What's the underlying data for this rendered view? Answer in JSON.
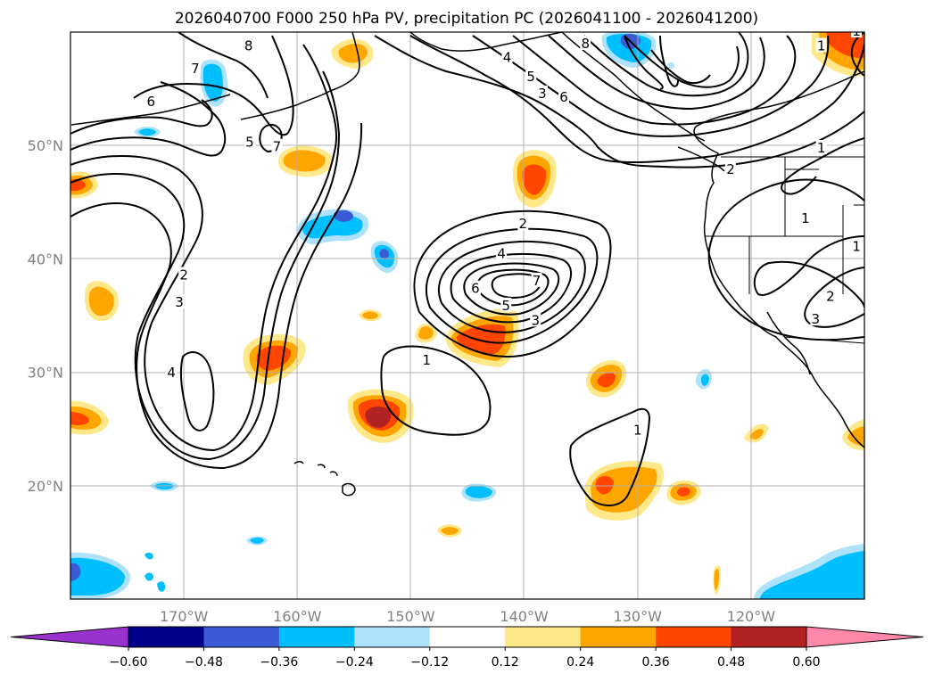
{
  "title": "2026040700 F000 250 hPa PV, precipitation PC (2026041100 - 2026041200)",
  "chart_data": {
    "type": "contour-map",
    "title": "2026040700 F000 250 hPa PV, precipitation PC (2026041100 - 2026041200)",
    "init_time": "2026040700",
    "forecast_hour": "F000",
    "level": "250 hPa",
    "contour_field": "PV",
    "shaded_field": "precipitation PC",
    "valid_window": "2026041100 - 2026041200",
    "lon_range": [
      -180,
      -110
    ],
    "lat_range": [
      10,
      60
    ],
    "x_ticks": [
      {
        "lon": -170,
        "label": "170°W"
      },
      {
        "lon": -160,
        "label": "160°W"
      },
      {
        "lon": -150,
        "label": "150°W"
      },
      {
        "lon": -140,
        "label": "140°W"
      },
      {
        "lon": -130,
        "label": "130°W"
      },
      {
        "lon": -120,
        "label": "120°W"
      }
    ],
    "y_ticks": [
      {
        "lat": 20,
        "label": "20°N"
      },
      {
        "lat": 30,
        "label": "30°N"
      },
      {
        "lat": 40,
        "label": "40°N"
      },
      {
        "lat": 50,
        "label": "50°N"
      }
    ],
    "grid": true,
    "colorbar": {
      "levels": [
        -0.6,
        -0.48,
        -0.36,
        -0.24,
        -0.12,
        0.12,
        0.24,
        0.36,
        0.48,
        0.6
      ],
      "tick_labels": [
        "−0.60",
        "−0.48",
        "−0.36",
        "−0.24",
        "−0.12",
        "0.12",
        "0.24",
        "0.36",
        "0.48",
        "0.60"
      ],
      "colors": [
        "#9932cc",
        "#00008b",
        "#3b5bd6",
        "#00bfff",
        "#aee2fa",
        "#ffffff",
        "#ffe88a",
        "#ffa500",
        "#ff4500",
        "#b22222",
        "#ff88aa"
      ],
      "extend": "both"
    },
    "contour_labels": [
      {
        "text": "7",
        "lon": -169.0,
        "lat": 56.7
      },
      {
        "text": "6",
        "lon": -172.9,
        "lat": 53.8
      },
      {
        "text": "8",
        "lon": -164.3,
        "lat": 58.7
      },
      {
        "text": "5",
        "lon": -164.2,
        "lat": 50.2
      },
      {
        "text": "7",
        "lon": -161.8,
        "lat": 49.8
      },
      {
        "text": "2",
        "lon": -170.0,
        "lat": 38.5
      },
      {
        "text": "3",
        "lon": -170.4,
        "lat": 36.1
      },
      {
        "text": "4",
        "lon": -171.1,
        "lat": 29.9
      },
      {
        "text": "4",
        "lon": -141.5,
        "lat": 57.7
      },
      {
        "text": "5",
        "lon": -139.4,
        "lat": 56.0
      },
      {
        "text": "3",
        "lon": -138.4,
        "lat": 54.5
      },
      {
        "text": "6",
        "lon": -136.5,
        "lat": 54.2
      },
      {
        "text": "8",
        "lon": -134.6,
        "lat": 58.9
      },
      {
        "text": "2",
        "lon": -121.8,
        "lat": 47.8
      },
      {
        "text": "1",
        "lon": -113.8,
        "lat": 49.7
      },
      {
        "text": "1",
        "lon": -113.8,
        "lat": 58.7
      },
      {
        "text": "1",
        "lon": -110.7,
        "lat": 60.0
      },
      {
        "text": "1",
        "lon": -115.2,
        "lat": 43.5
      },
      {
        "text": "2",
        "lon": -140.1,
        "lat": 43.0
      },
      {
        "text": "4",
        "lon": -142.0,
        "lat": 40.4
      },
      {
        "text": "6",
        "lon": -144.3,
        "lat": 37.3
      },
      {
        "text": "7",
        "lon": -138.9,
        "lat": 38.0
      },
      {
        "text": "5",
        "lon": -141.6,
        "lat": 35.8
      },
      {
        "text": "3",
        "lon": -139.0,
        "lat": 34.5
      },
      {
        "text": "1",
        "lon": -148.6,
        "lat": 31.0
      },
      {
        "text": "1",
        "lon": -130.0,
        "lat": 24.8
      },
      {
        "text": "2",
        "lon": -113.0,
        "lat": 36.6
      },
      {
        "text": "3",
        "lon": -114.3,
        "lat": 34.6
      },
      {
        "text": "1",
        "lon": -110.7,
        "lat": 41.0
      }
    ]
  }
}
